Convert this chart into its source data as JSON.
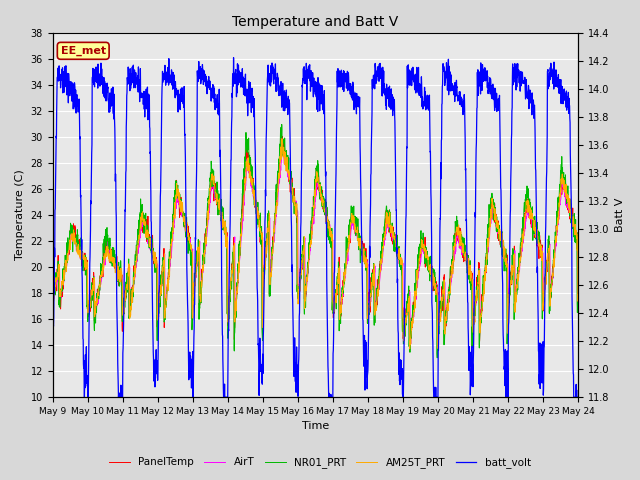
{
  "title": "Temperature and Batt V",
  "ylabel_left": "Temperature (C)",
  "ylabel_right": "Batt V",
  "xlabel": "Time",
  "ylim_left": [
    10,
    38
  ],
  "ylim_right": [
    11.8,
    14.4
  ],
  "xtick_labels": [
    "May 9",
    "May 10",
    "May 11",
    "May 12",
    "May 13",
    "May 14",
    "May 15",
    "May 16",
    "May 17",
    "May 18",
    "May 19",
    "May 20",
    "May 21",
    "May 22",
    "May 23",
    "May 24"
  ],
  "background_color": "#d8d8d8",
  "plot_bg_color": "#e8e8e8",
  "grid_color": "#ffffff",
  "legend_entries": [
    "PanelTemp",
    "AirT",
    "NR01_PRT",
    "AM25T_PRT",
    "batt_volt"
  ],
  "legend_colors": [
    "#ff0000",
    "#ff00ff",
    "#00bb00",
    "#ffaa00",
    "#0000ff"
  ],
  "watermark_text": "EE_met",
  "watermark_color": "#aa0000",
  "watermark_bg": "#ffff99",
  "watermark_border": "#aa0000",
  "n_days": 15,
  "pts_per_day": 144
}
